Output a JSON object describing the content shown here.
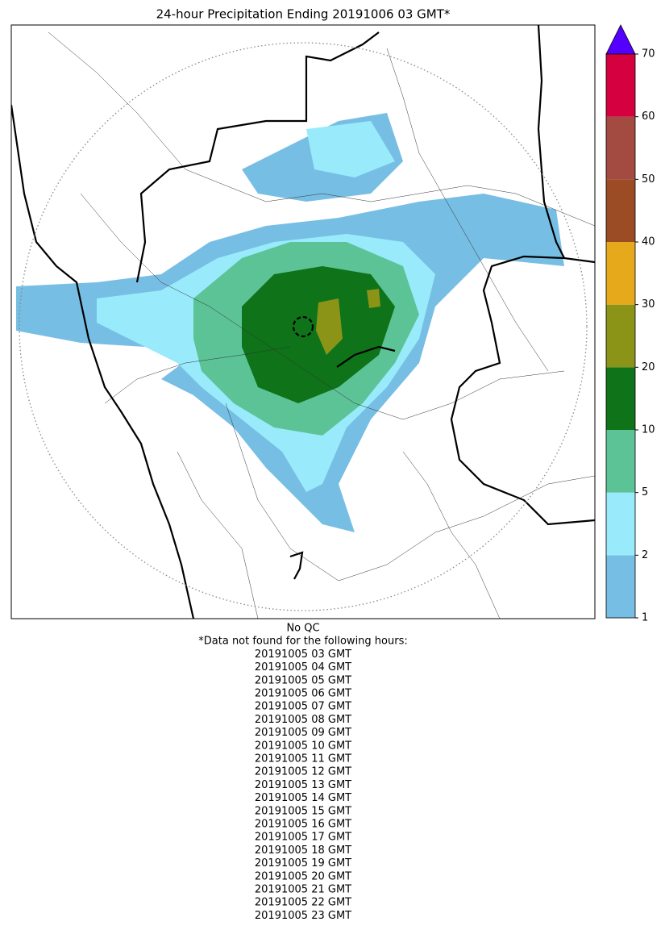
{
  "title": "24-hour Precipitation Ending 20191006 03 GMT*",
  "colorbar": {
    "levels": [
      1,
      2,
      5,
      10,
      20,
      30,
      40,
      50,
      60,
      70
    ],
    "colors": [
      "#77bee4",
      "#99ebfb",
      "#5cc397",
      "#0e7319",
      "#8c9417",
      "#e6a91b",
      "#9b4c25",
      "#a34a41",
      "#d4003f"
    ],
    "extend_color": "#5500ff"
  },
  "notes": {
    "qc": "No QC",
    "header": "*Data not found for the following hours:",
    "hours": [
      "20191005 03 GMT",
      "20191005 04 GMT",
      "20191005 05 GMT",
      "20191005 06 GMT",
      "20191005 07 GMT",
      "20191005 08 GMT",
      "20191005 09 GMT",
      "20191005 10 GMT",
      "20191005 11 GMT",
      "20191005 12 GMT",
      "20191005 13 GMT",
      "20191005 14 GMT",
      "20191005 15 GMT",
      "20191005 16 GMT",
      "20191005 17 GMT",
      "20191005 18 GMT",
      "20191005 19 GMT",
      "20191005 20 GMT",
      "20191005 21 GMT",
      "20191005 22 GMT",
      "20191005 23 GMT"
    ]
  }
}
